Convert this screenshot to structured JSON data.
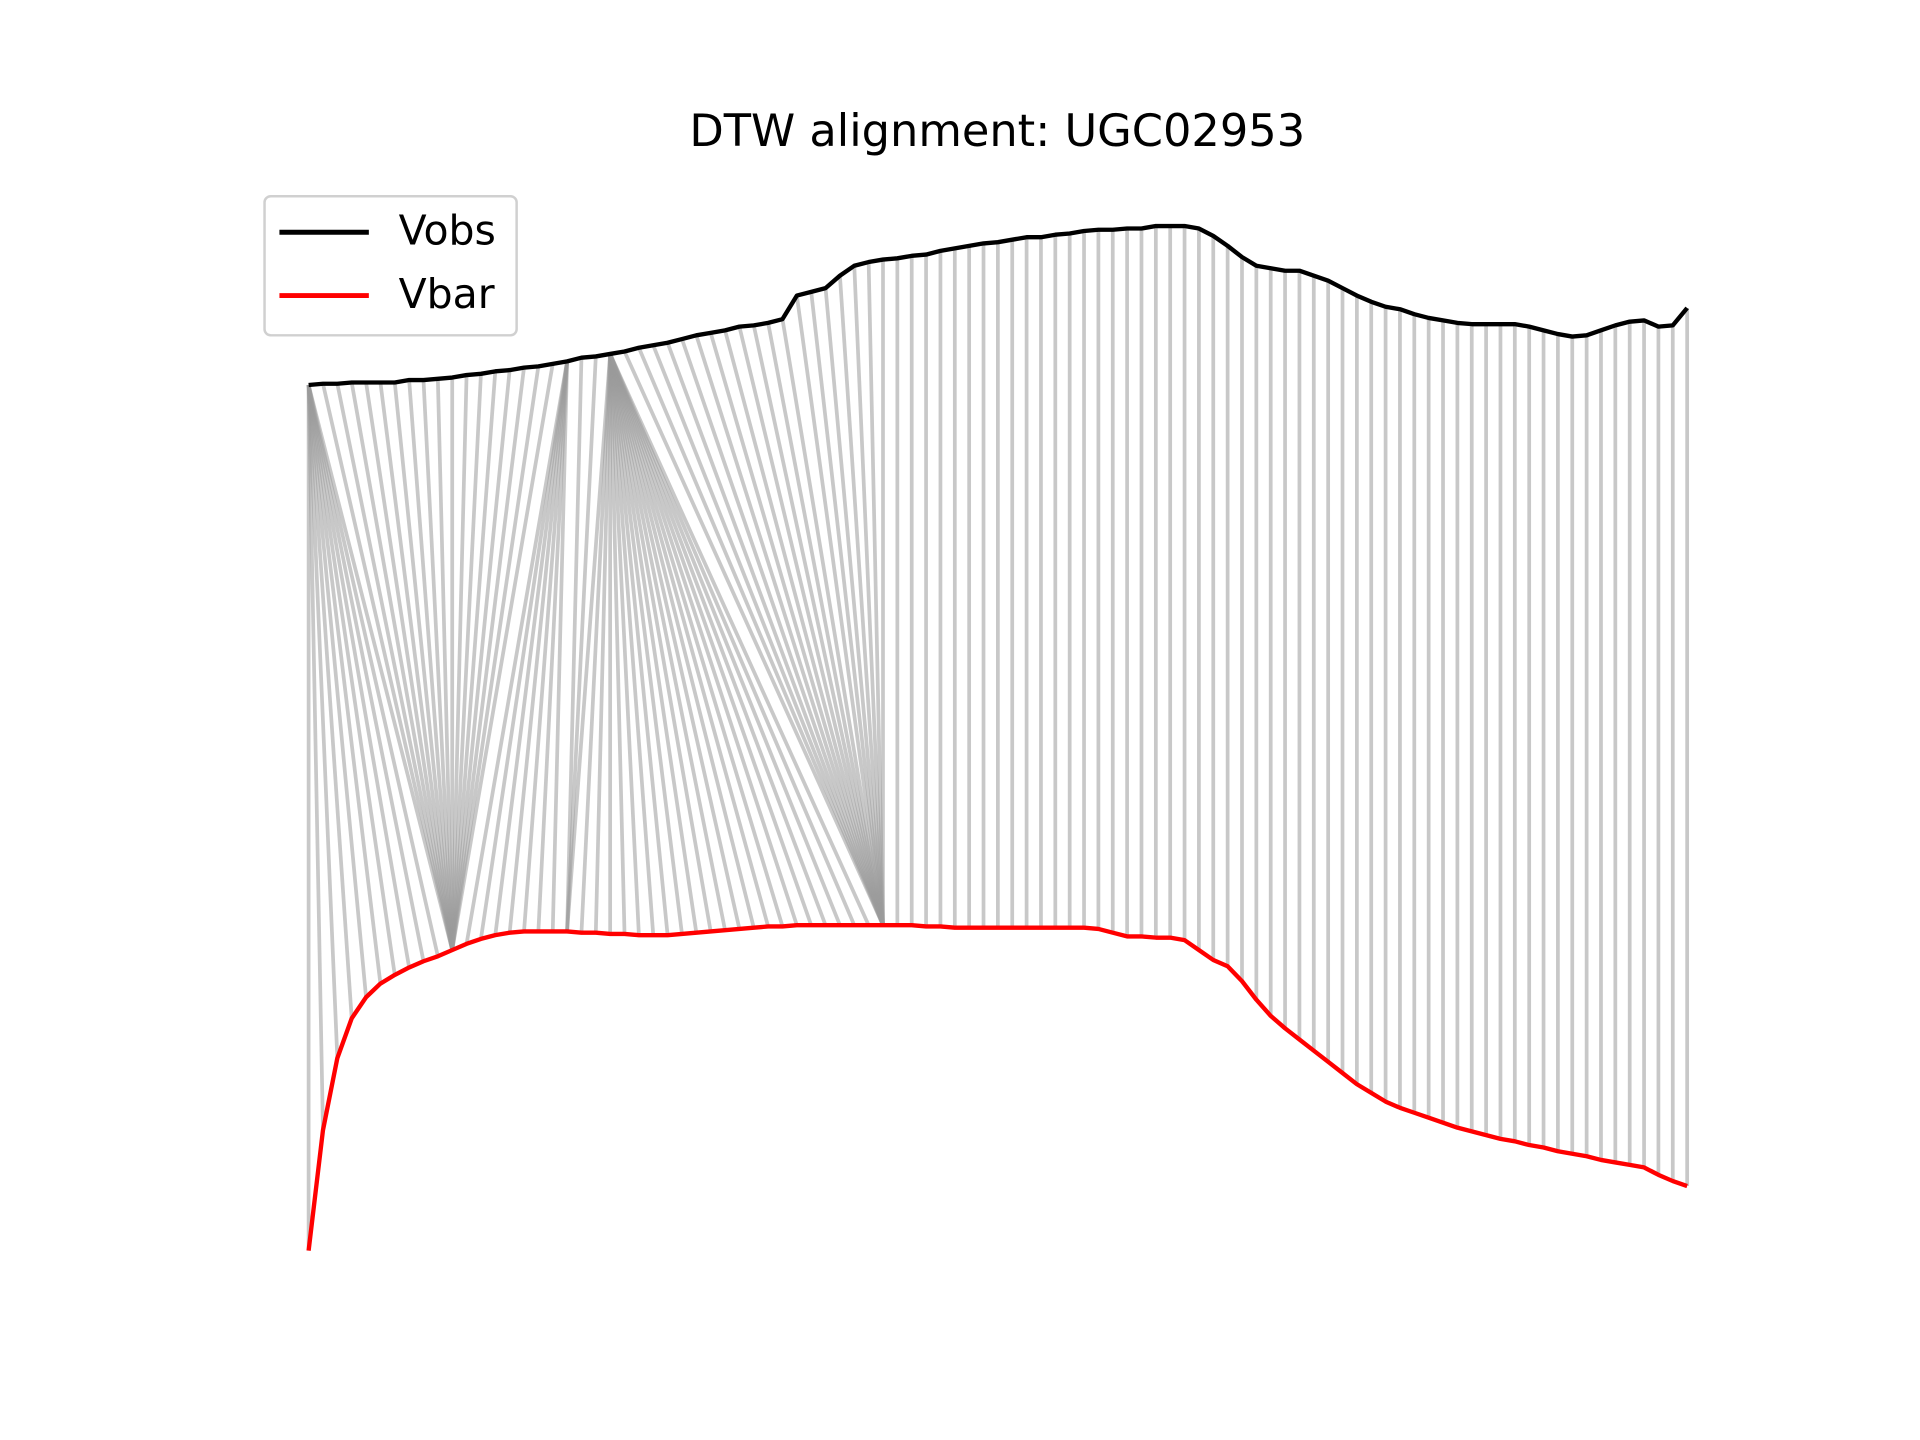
{
  "chart_data": {
    "type": "dtw-alignment",
    "title": "DTW alignment: UGC02953",
    "legend": "upper left",
    "xlim": [
      -4.8,
      100.8
    ],
    "ylim": [
      20,
      920
    ],
    "series": [
      {
        "name": "Vobs",
        "color": "#000000",
        "values": [
          750,
          751,
          751,
          752,
          752,
          752,
          752,
          754,
          754,
          755,
          756,
          758,
          759,
          761,
          762,
          764,
          765,
          767,
          769,
          772,
          773,
          775,
          777,
          780,
          782,
          784,
          787,
          790,
          792,
          794,
          797,
          798,
          800,
          803,
          822,
          825,
          828,
          838,
          846,
          849,
          851,
          852,
          854,
          855,
          858,
          860,
          862,
          864,
          865,
          867,
          869,
          869,
          871,
          872,
          874,
          875,
          875,
          876,
          876,
          878,
          878,
          878,
          876,
          870,
          862,
          853,
          846,
          844,
          842,
          842,
          838,
          834,
          828,
          822,
          817,
          813,
          811,
          807,
          804,
          802,
          800,
          799,
          799,
          799,
          799,
          797,
          794,
          791,
          789,
          790,
          794,
          798,
          801,
          802,
          797,
          798,
          812
        ]
      },
      {
        "name": "Vbar",
        "color": "#ff0000",
        "values": [
          53,
          150,
          208,
          240,
          257,
          268,
          275,
          281,
          286,
          290,
          295,
          300,
          304,
          307,
          309,
          310,
          310,
          310,
          310,
          309,
          309,
          308,
          308,
          307,
          307,
          307,
          308,
          309,
          310,
          311,
          312,
          313,
          314,
          314,
          315,
          315,
          315,
          315,
          315,
          315,
          315,
          315,
          315,
          314,
          314,
          313,
          313,
          313,
          313,
          313,
          313,
          313,
          313,
          313,
          313,
          312,
          309,
          306,
          306,
          305,
          305,
          303,
          295,
          287,
          282,
          270,
          255,
          242,
          232,
          223,
          214,
          205,
          196,
          187,
          180,
          173,
          168,
          164,
          160,
          156,
          152,
          149,
          146,
          143,
          141,
          138,
          136,
          133,
          131,
          129,
          126,
          124,
          122,
          120,
          114,
          109,
          105
        ]
      }
    ],
    "alignment_color": "#9a9a9a",
    "alignment": [
      [
        0,
        0
      ],
      [
        0,
        1
      ],
      [
        0,
        2
      ],
      [
        0,
        3
      ],
      [
        0,
        4
      ],
      [
        0,
        5
      ],
      [
        0,
        6
      ],
      [
        0,
        7
      ],
      [
        0,
        8
      ],
      [
        0,
        9
      ],
      [
        0,
        10
      ],
      [
        1,
        10
      ],
      [
        2,
        10
      ],
      [
        3,
        10
      ],
      [
        4,
        10
      ],
      [
        5,
        10
      ],
      [
        6,
        10
      ],
      [
        7,
        10
      ],
      [
        8,
        10
      ],
      [
        9,
        10
      ],
      [
        10,
        10
      ],
      [
        11,
        10
      ],
      [
        12,
        10
      ],
      [
        13,
        10
      ],
      [
        14,
        10
      ],
      [
        15,
        10
      ],
      [
        16,
        10
      ],
      [
        17,
        10
      ],
      [
        18,
        11
      ],
      [
        18,
        12
      ],
      [
        18,
        13
      ],
      [
        18,
        14
      ],
      [
        18,
        15
      ],
      [
        18,
        16
      ],
      [
        18,
        17
      ],
      [
        19,
        18
      ],
      [
        20,
        18
      ],
      [
        21,
        18
      ],
      [
        21,
        19
      ],
      [
        21,
        20
      ],
      [
        21,
        21
      ],
      [
        21,
        22
      ],
      [
        21,
        23
      ],
      [
        21,
        24
      ],
      [
        21,
        25
      ],
      [
        21,
        26
      ],
      [
        21,
        27
      ],
      [
        21,
        28
      ],
      [
        21,
        29
      ],
      [
        21,
        30
      ],
      [
        21,
        31
      ],
      [
        21,
        32
      ],
      [
        21,
        33
      ],
      [
        21,
        34
      ],
      [
        21,
        35
      ],
      [
        21,
        36
      ],
      [
        21,
        37
      ],
      [
        21,
        38
      ],
      [
        21,
        39
      ],
      [
        22,
        40
      ],
      [
        23,
        40
      ],
      [
        24,
        40
      ],
      [
        25,
        40
      ],
      [
        26,
        40
      ],
      [
        27,
        40
      ],
      [
        28,
        40
      ],
      [
        29,
        40
      ],
      [
        30,
        40
      ],
      [
        31,
        40
      ],
      [
        32,
        40
      ],
      [
        33,
        40
      ],
      [
        34,
        40
      ],
      [
        35,
        40
      ],
      [
        36,
        40
      ],
      [
        37,
        40
      ],
      [
        38,
        40
      ],
      [
        39,
        40
      ],
      [
        40,
        40
      ],
      [
        41,
        41
      ],
      [
        42,
        42
      ],
      [
        43,
        43
      ],
      [
        44,
        44
      ],
      [
        45,
        45
      ],
      [
        46,
        46
      ],
      [
        47,
        47
      ],
      [
        48,
        48
      ],
      [
        49,
        49
      ],
      [
        50,
        50
      ],
      [
        51,
        51
      ],
      [
        52,
        52
      ],
      [
        53,
        53
      ],
      [
        54,
        54
      ],
      [
        55,
        55
      ],
      [
        56,
        56
      ],
      [
        57,
        57
      ],
      [
        58,
        58
      ],
      [
        59,
        59
      ],
      [
        60,
        60
      ],
      [
        61,
        61
      ],
      [
        62,
        62
      ],
      [
        63,
        63
      ],
      [
        64,
        64
      ],
      [
        65,
        65
      ],
      [
        66,
        66
      ],
      [
        67,
        67
      ],
      [
        68,
        68
      ],
      [
        69,
        69
      ],
      [
        70,
        70
      ],
      [
        71,
        71
      ],
      [
        72,
        72
      ],
      [
        73,
        73
      ],
      [
        74,
        74
      ],
      [
        75,
        75
      ],
      [
        76,
        76
      ],
      [
        77,
        77
      ],
      [
        78,
        78
      ],
      [
        79,
        79
      ],
      [
        80,
        80
      ],
      [
        81,
        81
      ],
      [
        82,
        82
      ],
      [
        83,
        83
      ],
      [
        84,
        84
      ],
      [
        85,
        85
      ],
      [
        86,
        86
      ],
      [
        87,
        87
      ],
      [
        88,
        88
      ],
      [
        89,
        89
      ],
      [
        90,
        90
      ],
      [
        91,
        91
      ],
      [
        92,
        92
      ],
      [
        93,
        93
      ],
      [
        94,
        94
      ],
      [
        95,
        95
      ],
      [
        96,
        96
      ]
    ]
  }
}
